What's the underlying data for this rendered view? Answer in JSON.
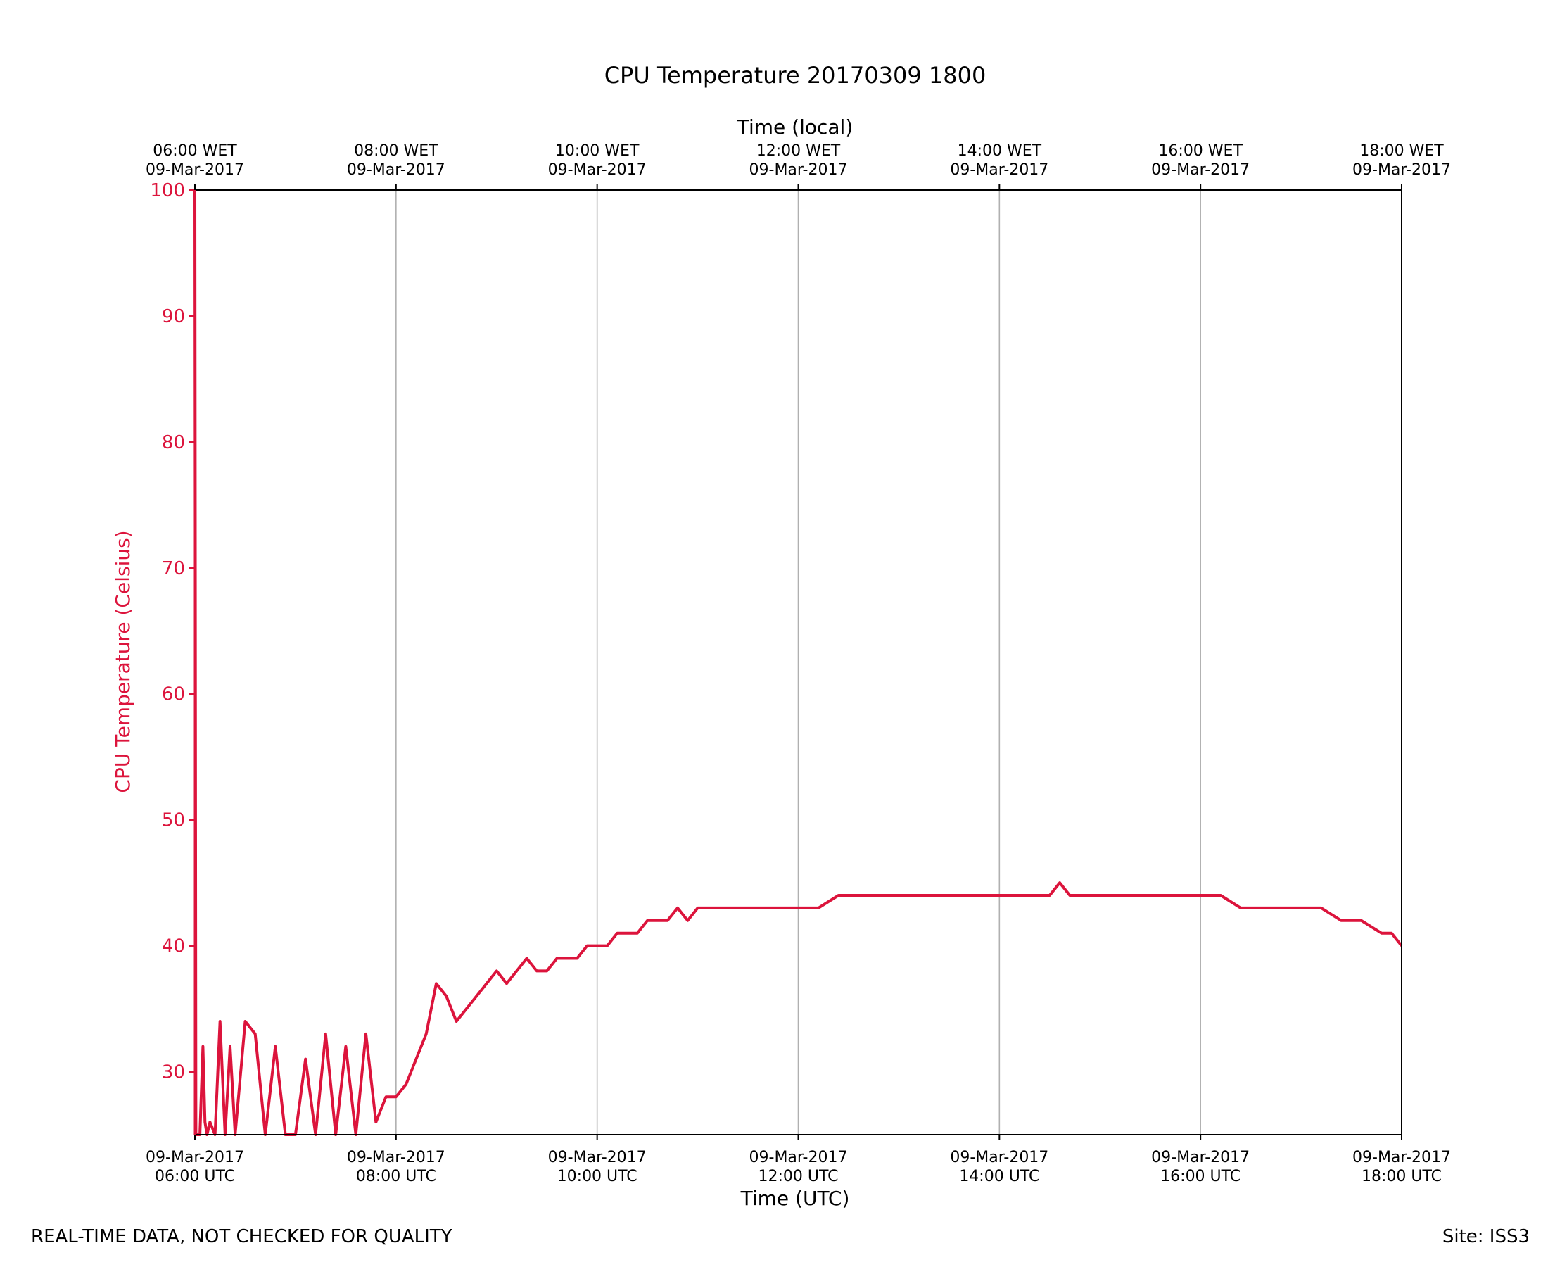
{
  "footer": {
    "left_note": "REAL-TIME DATA, NOT CHECKED FOR QUALITY",
    "site": "Site: ISS3"
  },
  "colors": {
    "series": "#dc143c",
    "grid": "#b0b0b0",
    "axis": "#000000"
  },
  "chart_data": {
    "type": "line",
    "title": "CPU Temperature 20170309 1800",
    "xlabel": "Time (UTC)",
    "x2label": "Time (local)",
    "ylabel": "CPU Temperature (Celsius)",
    "xlim": [
      6,
      18
    ],
    "ylim": [
      25,
      100
    ],
    "yticks": [
      30,
      40,
      50,
      60,
      70,
      80,
      90,
      100
    ],
    "grid": "vertical",
    "xticks_bottom": [
      {
        "x": 6,
        "line1": "09-Mar-2017",
        "line2": "06:00 UTC"
      },
      {
        "x": 8,
        "line1": "09-Mar-2017",
        "line2": "08:00 UTC"
      },
      {
        "x": 10,
        "line1": "09-Mar-2017",
        "line2": "10:00 UTC"
      },
      {
        "x": 12,
        "line1": "09-Mar-2017",
        "line2": "12:00 UTC"
      },
      {
        "x": 14,
        "line1": "09-Mar-2017",
        "line2": "14:00 UTC"
      },
      {
        "x": 16,
        "line1": "09-Mar-2017",
        "line2": "16:00 UTC"
      },
      {
        "x": 18,
        "line1": "09-Mar-2017",
        "line2": "18:00 UTC"
      }
    ],
    "xticks_top": [
      {
        "x": 6,
        "line1": "06:00 WET",
        "line2": "09-Mar-2017"
      },
      {
        "x": 8,
        "line1": "08:00 WET",
        "line2": "09-Mar-2017"
      },
      {
        "x": 10,
        "line1": "10:00 WET",
        "line2": "09-Mar-2017"
      },
      {
        "x": 12,
        "line1": "12:00 WET",
        "line2": "09-Mar-2017"
      },
      {
        "x": 14,
        "line1": "14:00 WET",
        "line2": "09-Mar-2017"
      },
      {
        "x": 16,
        "line1": "16:00 WET",
        "line2": "09-Mar-2017"
      },
      {
        "x": 18,
        "line1": "18:00 WET",
        "line2": "09-Mar-2017"
      }
    ],
    "series": [
      {
        "name": "CPU Temperature",
        "x_unit": "hour UTC",
        "x": [
          6.0,
          6.01,
          6.05,
          6.08,
          6.1,
          6.12,
          6.15,
          6.2,
          6.25,
          6.3,
          6.35,
          6.4,
          6.5,
          6.6,
          6.7,
          6.8,
          6.9,
          7.0,
          7.1,
          7.2,
          7.3,
          7.4,
          7.5,
          7.6,
          7.7,
          7.8,
          7.9,
          8.0,
          8.1,
          8.2,
          8.3,
          8.4,
          8.5,
          8.6,
          8.7,
          8.8,
          8.9,
          9.0,
          9.1,
          9.2,
          9.3,
          9.4,
          9.5,
          9.6,
          9.7,
          9.8,
          9.9,
          10.0,
          10.1,
          10.2,
          10.3,
          10.4,
          10.5,
          10.6,
          10.7,
          10.8,
          10.9,
          11.0,
          11.2,
          11.4,
          11.6,
          11.8,
          12.0,
          12.2,
          12.4,
          12.6,
          12.8,
          13.0,
          13.2,
          13.4,
          13.6,
          13.8,
          14.0,
          14.1,
          14.2,
          14.3,
          14.4,
          14.5,
          14.6,
          14.7,
          14.8,
          14.9,
          15.0,
          15.2,
          15.4,
          15.6,
          15.8,
          16.0,
          16.2,
          16.4,
          16.6,
          16.8,
          17.0,
          17.2,
          17.4,
          17.6,
          17.8,
          17.9,
          18.0
        ],
        "y": [
          100,
          25,
          25,
          32,
          26,
          25,
          26,
          25,
          34,
          25,
          32,
          25,
          34,
          33,
          25,
          32,
          25,
          25,
          31,
          25,
          33,
          25,
          32,
          25,
          33,
          26,
          28,
          28,
          29,
          31,
          33,
          37,
          36,
          34,
          35,
          36,
          37,
          38,
          37,
          38,
          39,
          38,
          38,
          39,
          39,
          39,
          40,
          40,
          40,
          41,
          41,
          41,
          42,
          42,
          42,
          43,
          42,
          43,
          43,
          43,
          43,
          43,
          43,
          43,
          44,
          44,
          44,
          44,
          44,
          44,
          44,
          44,
          44,
          44,
          44,
          44,
          44,
          44,
          45,
          44,
          44,
          44,
          44,
          44,
          44,
          44,
          44,
          44,
          44,
          43,
          43,
          43,
          43,
          43,
          42,
          42,
          41,
          41,
          40
        ]
      }
    ]
  }
}
